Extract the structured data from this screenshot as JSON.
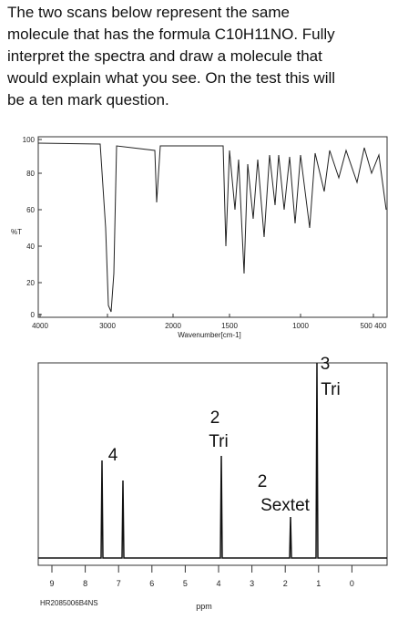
{
  "question": {
    "lines": [
      "The two scans below represent the same",
      "molecule that has the formula C10H11NO.  Fully",
      "interpret the spectra and draw a molecule that",
      "would explain what you see.  On the test this will",
      "be a ten mark question."
    ]
  },
  "ir_spectrum": {
    "y_label": "%T",
    "yticks": [
      "100",
      "80",
      "60",
      "40",
      "20",
      "0"
    ],
    "xticks": [
      "4000",
      "3000",
      "2000",
      "1500",
      "1000",
      "500 400"
    ],
    "x_label": "Wavenumber[cm-1]"
  },
  "nmr_spectrum": {
    "annotations": [
      "4",
      "2",
      "Tri",
      "2",
      "Sextet",
      "3",
      "Tri"
    ],
    "xticks": [
      "9",
      "8",
      "7",
      "6",
      "5",
      "4",
      "3",
      "2",
      "1",
      "0"
    ],
    "code": "HR2085006B4NS",
    "x_label": "ppm"
  }
}
